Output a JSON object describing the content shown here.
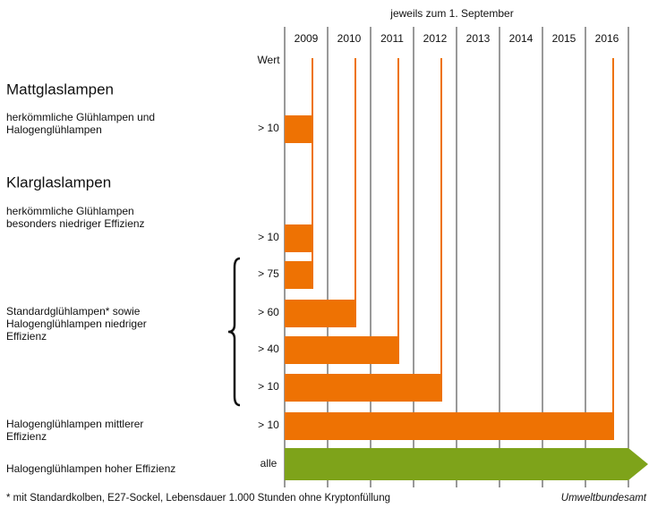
{
  "header": "jeweils zum 1. September",
  "years": [
    "2009",
    "2010",
    "2011",
    "2012",
    "2013",
    "2014",
    "2015",
    "2016"
  ],
  "value_heading": "Wert",
  "sections": [
    {
      "title": "Mattglaslampen",
      "groups": [
        {
          "label": [
            "herkömmliche Glühlampen und",
            "Halogenglühlampen"
          ],
          "rows": [
            {
              "value": "> 10",
              "until": "2009"
            }
          ]
        }
      ]
    },
    {
      "title": "Klarglaslampen",
      "groups": [
        {
          "label": [
            "herkömmliche Glühlampen",
            "besonders niedriger Effizienz"
          ],
          "rows": [
            {
              "value": "> 10",
              "until": "2009"
            }
          ]
        },
        {
          "label": [
            "Standardglühlampen* sowie",
            "Halogenglühlampen niedriger",
            "Effizienz"
          ],
          "rows": [
            {
              "value": "> 75",
              "until": "2009"
            },
            {
              "value": "> 60",
              "until": "2010"
            },
            {
              "value": "> 40",
              "until": "2011"
            },
            {
              "value": "> 10",
              "until": "2012"
            }
          ]
        },
        {
          "label": [
            "Halogenglühlampen mittlerer",
            "Effizienz"
          ],
          "rows": [
            {
              "value": "> 10",
              "until": "2016"
            }
          ]
        },
        {
          "label": [
            "Halogenglühlampen hoher Effizienz"
          ],
          "rows": [
            {
              "value": "alle"
            }
          ]
        }
      ]
    }
  ],
  "footnote": "* mit Standardkolben, E27-Sockel, Lebensdauer 1.000 Stunden ohne Kryptonfüllung",
  "source": "Umweltbundesamt"
}
